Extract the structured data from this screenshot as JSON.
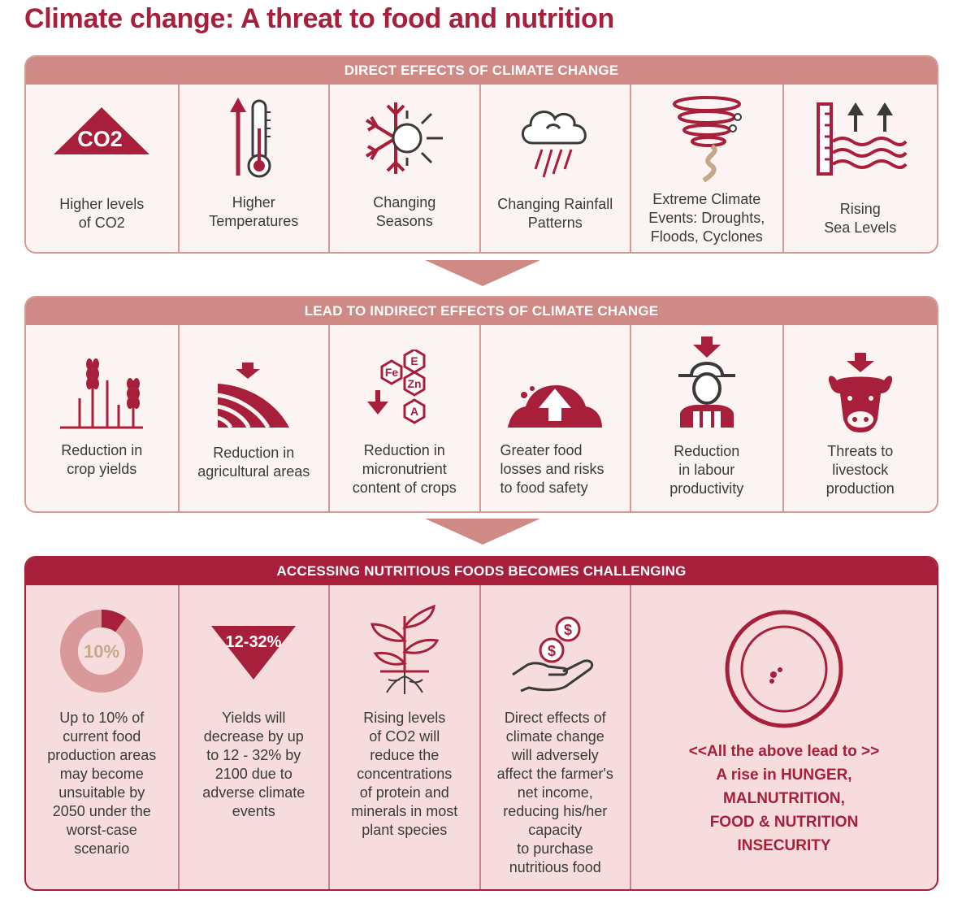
{
  "title": "Climate change: A threat to food and nutrition",
  "colors": {
    "primary": "#a71f3b",
    "light": "#cf8a86",
    "border": "#d69a96",
    "panel": "#fcf4f2",
    "panel_dark": "#f6dcdc"
  },
  "direct": {
    "header": "DIRECT EFFECTS OF CLIMATE CHANGE",
    "items": [
      {
        "icon": "co2-icon",
        "icon_text": "CO2",
        "label": "Higher levels\nof CO2"
      },
      {
        "icon": "thermometer-icon",
        "label": "Higher\nTemperatures"
      },
      {
        "icon": "snow-sun-icon",
        "label": "Changing\nSeasons"
      },
      {
        "icon": "rain-cloud-icon",
        "label": "Changing Rainfall\nPatterns"
      },
      {
        "icon": "tornado-icon",
        "label": "Extreme Climate\nEvents: Droughts,\nFloods, Cyclones"
      },
      {
        "icon": "sea-level-icon",
        "label": "Rising\nSea Levels"
      }
    ]
  },
  "indirect": {
    "header": "LEAD TO INDIRECT EFFECTS OF CLIMATE CHANGE",
    "items": [
      {
        "icon": "wheat-icon",
        "label": "Reduction in\ncrop yields"
      },
      {
        "icon": "field-icon",
        "label": "Reduction in\nagricultural areas"
      },
      {
        "icon": "micronutrient-icon",
        "icon_text": [
          "E",
          "Fe",
          "Zn",
          "A"
        ],
        "label": "Reduction in\nmicronutrient\ncontent of crops"
      },
      {
        "icon": "food-loss-icon",
        "label": "Greater food\nlosses and risks\nto food safety"
      },
      {
        "icon": "farmer-icon",
        "label": "Reduction\nin labour\nproductivity"
      },
      {
        "icon": "cow-icon",
        "label": "Threats to\nlivestock\nproduction"
      }
    ]
  },
  "access": {
    "header": "ACCESSING NUTRITIOUS FOODS BECOMES CHALLENGING",
    "items": [
      {
        "icon": "donut-icon",
        "icon_text": "10%",
        "fraction": 0.1,
        "label": "Up to 10% of\ncurrent food\nproduction areas\nmay become\nunsuitable by\n2050 under the\nworst-case\nscenario"
      },
      {
        "icon": "down-triangle-icon",
        "icon_text": "12-32%",
        "label": "Yields will\ndecrease by up\nto 12 - 32% by\n2100 due to\nadverse climate\nevents"
      },
      {
        "icon": "plant-icon",
        "label": "Rising levels\nof CO2 will\nreduce the\nconcentrations\nof protein and\nminerals in most\nplant species"
      },
      {
        "icon": "money-hand-icon",
        "label": "Direct effects of\nclimate change\nwill adversely\naffect the farmer's\nnet income,\nreducing his/her\ncapacity\nto purchase\nnutritious food"
      }
    ],
    "final": {
      "icon": "empty-plate-icon",
      "lines": [
        "<<All the above lead to >>",
        "A rise in HUNGER,",
        "MALNUTRITION,",
        "FOOD & NUTRITION",
        "INSECURITY"
      ]
    }
  }
}
